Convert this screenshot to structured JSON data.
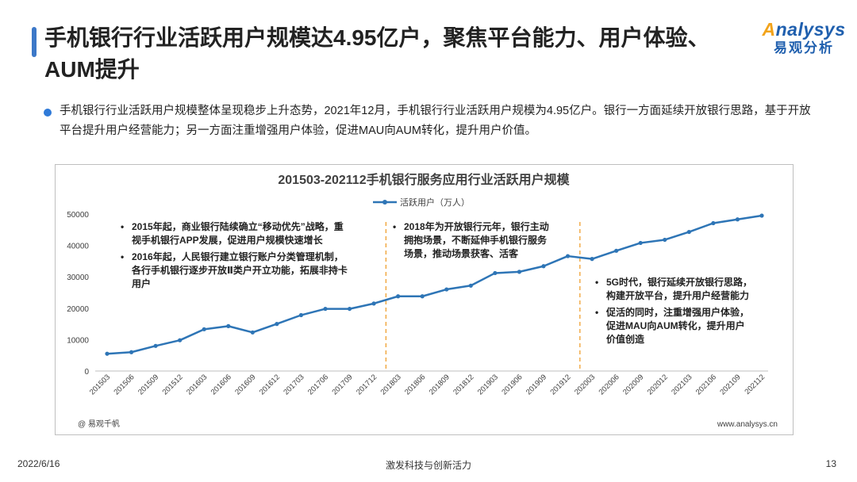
{
  "header": {
    "title": "手机银行行业活跃用户规模达4.95亿户，聚焦平台能力、用户体验、AUM提升",
    "logo_en": "nalysys",
    "logo_en_first": "A",
    "logo_cn": "易观分析"
  },
  "summary": "手机银行行业活跃用户规模整体呈现稳步上升态势，2021年12月，手机银行行业活跃用户规模为4.95亿户。银行一方面延续开放银行思路，基于开放平台提升用户经营能力；另一方面注重增强用户体验，促进MAU向AUM转化，提升用户价值。",
  "chart_data": {
    "type": "line",
    "title": "201503-202112手机银行服务应用行业活跃用户规模",
    "legend_position": "top",
    "grid": false,
    "x": [
      "201503",
      "201506",
      "201509",
      "201512",
      "201603",
      "201606",
      "201609",
      "201612",
      "201703",
      "201706",
      "201709",
      "201712",
      "201803",
      "201806",
      "201809",
      "201812",
      "201903",
      "201906",
      "201909",
      "201912",
      "202003",
      "202006",
      "202009",
      "202012",
      "202103",
      "202106",
      "202109",
      "202112"
    ],
    "ylim": [
      0,
      50000
    ],
    "yticks": [
      "50000",
      "40000",
      "30000",
      "20000",
      "10000",
      "0"
    ],
    "series": [
      {
        "name": "活跃用户（万人）",
        "color": "#2e75b6",
        "values": [
          5500,
          6000,
          8000,
          9800,
          13300,
          14300,
          12300,
          15000,
          17800,
          19800,
          19800,
          21500,
          23800,
          23800,
          26000,
          27200,
          31200,
          31600,
          33400,
          36600,
          35700,
          38300,
          40800,
          41800,
          44300,
          47100,
          48300,
          49500
        ]
      }
    ],
    "dividers_after": [
      "201712",
      "201912"
    ],
    "annotations": {
      "p1": [
        "2015年起，商业银行陆续确立“移动优先”战略，重视手机银行APP发展，促进用户规模快速增长",
        "2016年起，人民银行建立银行账户分类管理机制，各行手机银行逐步开放Ⅱ类户开立功能，拓展非持卡用户"
      ],
      "p2": [
        "2018年为开放银行元年，银行主动拥抱场景，不断延伸手机银行服务场景，推动场景获客、活客"
      ],
      "p3": [
        "5G时代，银行延续开放银行思路，构建开放平台，提升用户经营能力",
        "促活的同时，注重增强用户体验，促进MAU向AUM转化，提升用户价值创造"
      ]
    },
    "source": "@ 易观千帆",
    "website": "www.analysys.cn"
  },
  "footer": {
    "date": "2022/6/16",
    "slogan": "激发科技与创新活力",
    "page": "13"
  }
}
